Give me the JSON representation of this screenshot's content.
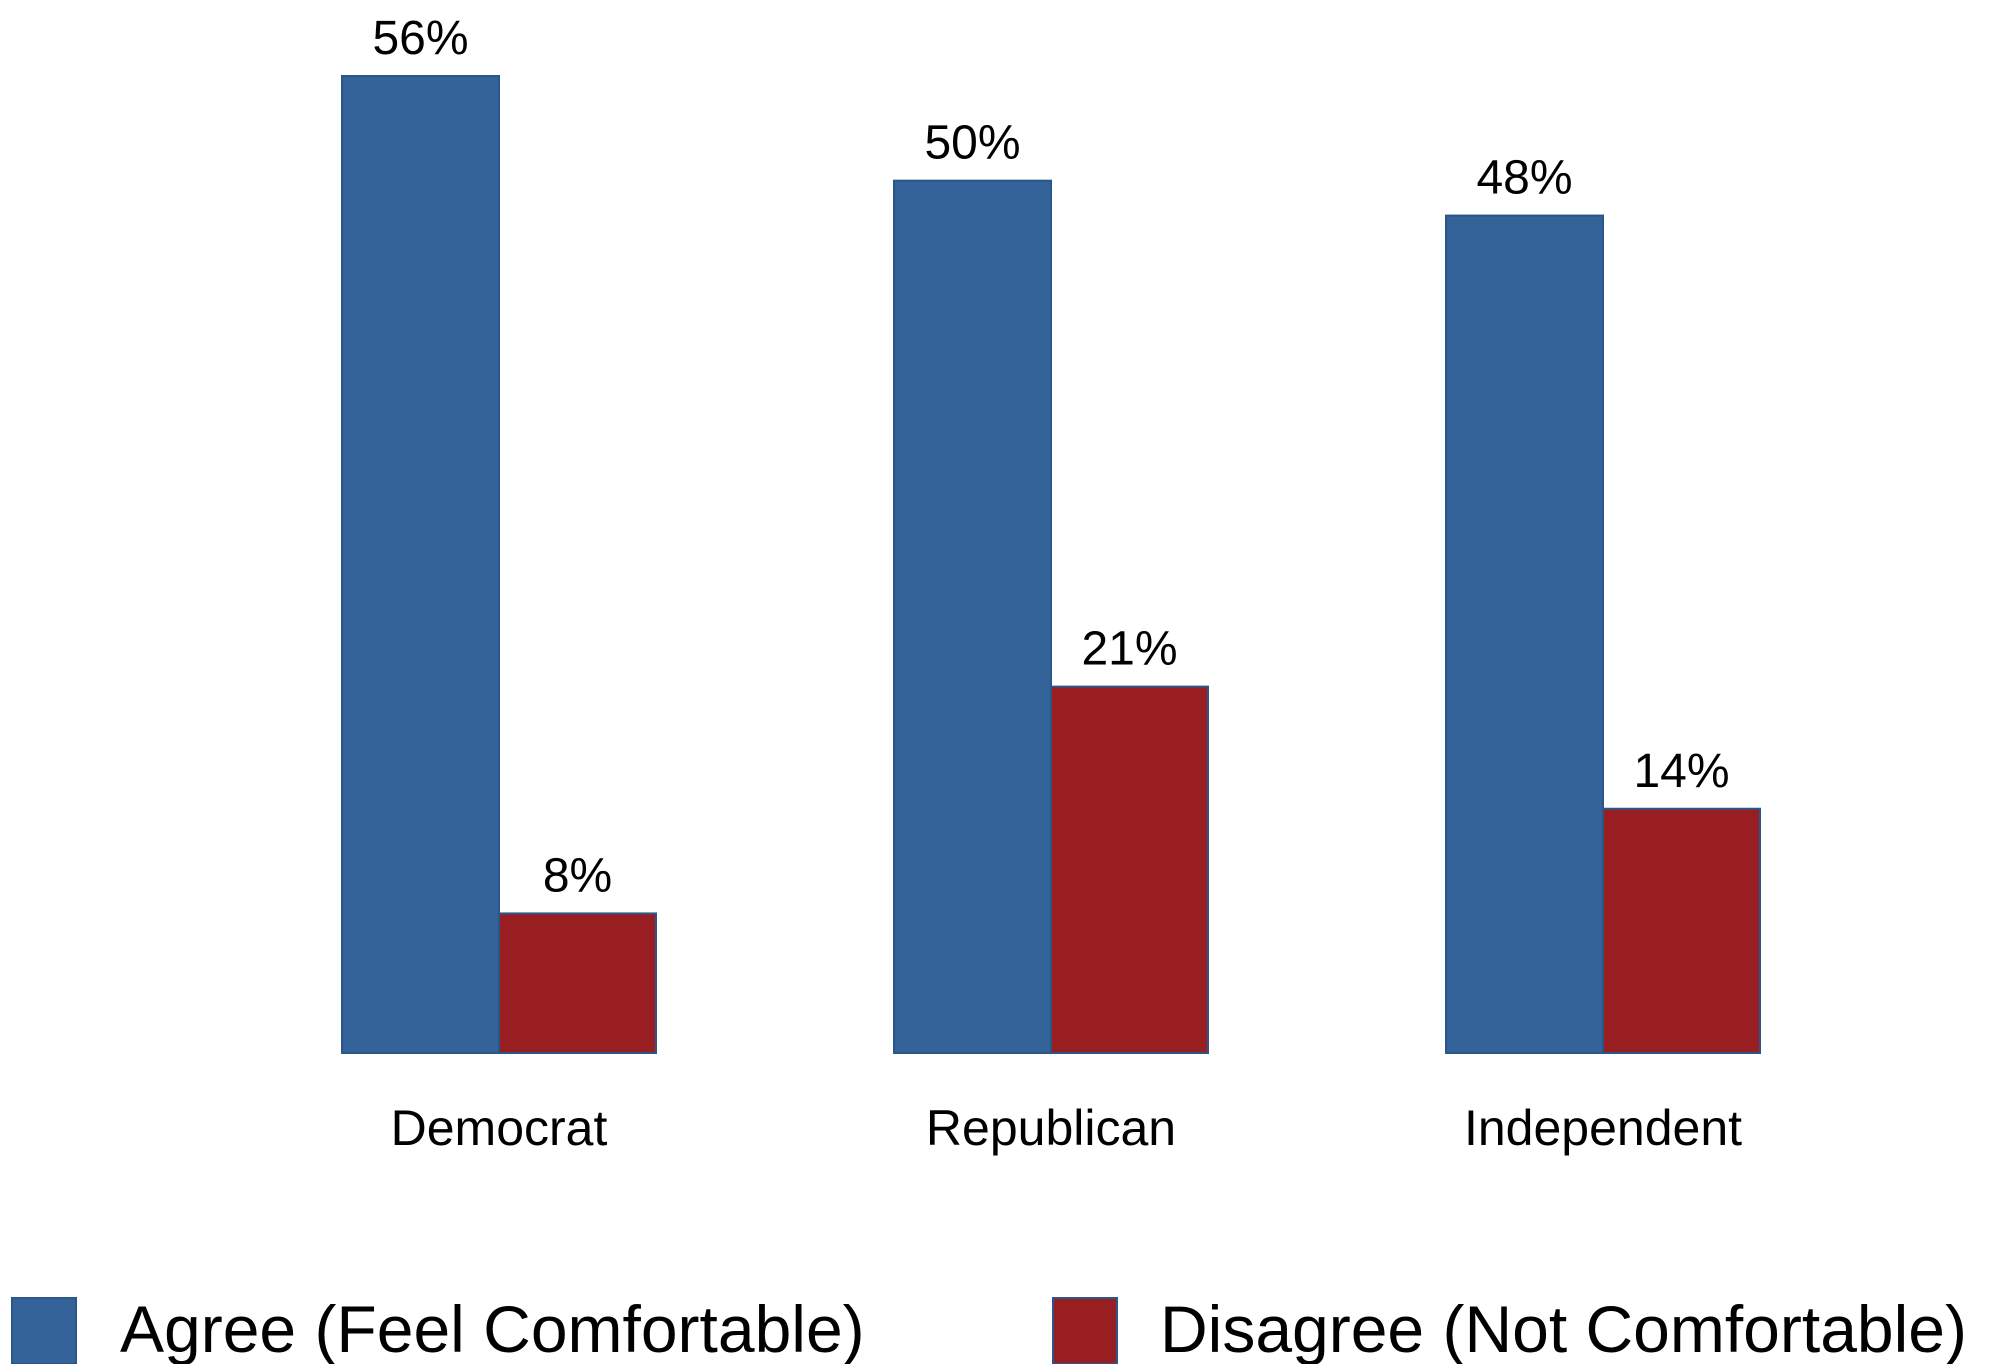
{
  "chart_data": {
    "type": "bar",
    "categories": [
      "Democrat",
      "Republican",
      "Independent"
    ],
    "series": [
      {
        "name": "Agree (Feel Comfortable)",
        "values": [
          56,
          50,
          48
        ],
        "labels": [
          "56%",
          "50%",
          "48%"
        ],
        "color": "#336399"
      },
      {
        "name": "Disagree (Not Comfortable)",
        "values": [
          8,
          21,
          14
        ],
        "labels": [
          "8%",
          "21%",
          "14%"
        ],
        "color": "#991e21"
      }
    ],
    "title": "",
    "xlabel": "",
    "ylabel": "",
    "ylim": [
      0,
      56
    ],
    "grid": false,
    "legend_position": "bottom",
    "value_format": "percent"
  }
}
